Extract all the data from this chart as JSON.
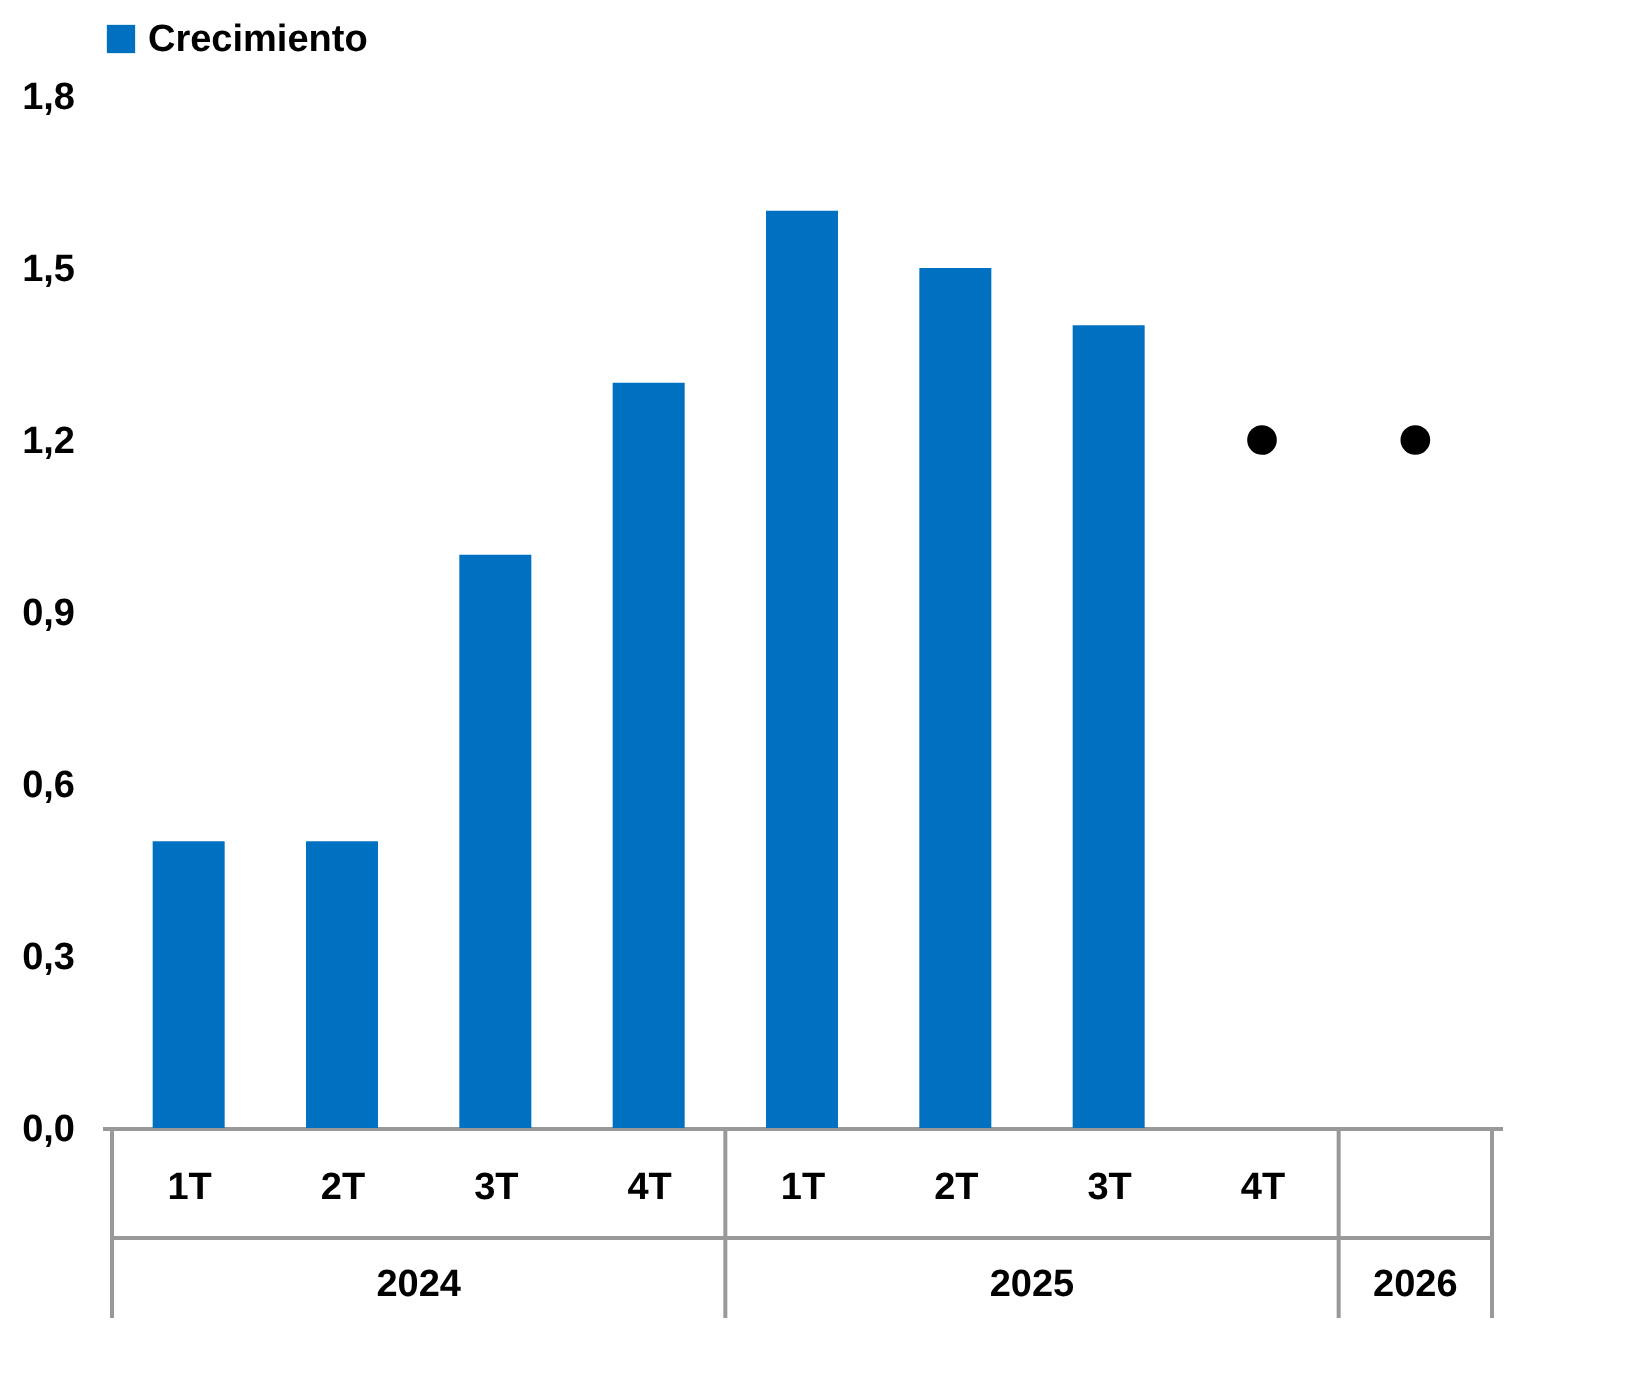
{
  "chart_data": {
    "type": "bar",
    "categories": [
      "1T",
      "2T",
      "3T",
      "4T",
      "1T",
      "2T",
      "3T",
      "4T",
      null
    ],
    "series": [
      {
        "name": "Crecimiento",
        "color": "#0070c0",
        "values": [
          0.5,
          0.5,
          1.0,
          1.3,
          1.6,
          1.5,
          1.4,
          null,
          null
        ]
      },
      {
        "type": "scatter",
        "color": "#000000",
        "marker": "circle",
        "values": [
          null,
          null,
          null,
          null,
          null,
          null,
          null,
          1.2,
          1.2
        ]
      }
    ],
    "ylim": [
      0,
      1.8
    ],
    "yticks": [
      {
        "value": 0,
        "label": "0,0"
      },
      {
        "value": 0.3,
        "label": "0,3"
      },
      {
        "value": 0.6,
        "label": "0,6"
      },
      {
        "value": 0.9,
        "label": "0,9"
      },
      {
        "value": 1.2,
        "label": "1,2"
      },
      {
        "value": 1.5,
        "label": "1,5"
      },
      {
        "value": 1.8,
        "label": "1,8"
      }
    ],
    "annotations": [
      "2024",
      "2025",
      "2026"
    ],
    "grid": false,
    "legend": "top"
  }
}
